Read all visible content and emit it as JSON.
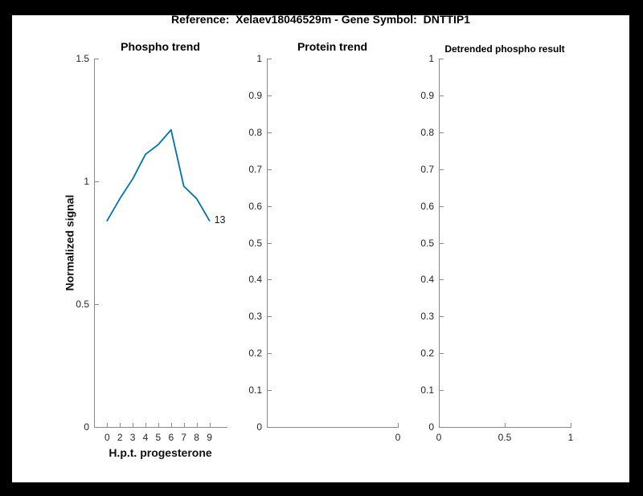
{
  "figure": {
    "title": "Reference:  Xelaev18046529m - Gene Symbol:  DNTTIP1",
    "background_color": "#ffffff",
    "border_color": "#000000"
  },
  "chart_data": [
    {
      "type": "line",
      "title": "Phospho trend",
      "xlabel": "H.p.t. progesterone",
      "ylabel": "Normalized signal",
      "x_tick_labels": [
        "0",
        "2",
        "3",
        "4",
        "5",
        "6",
        "7",
        "8",
        "9"
      ],
      "x": [
        0,
        2,
        3,
        4,
        5,
        6,
        7,
        8,
        9
      ],
      "y_ticks": [
        "0",
        "0.5",
        "1",
        "1.5"
      ],
      "ylim": [
        0,
        1.5
      ],
      "values": [
        0.84,
        0.93,
        1.01,
        1.11,
        1.15,
        1.21,
        0.98,
        0.93,
        0.84
      ],
      "line_color": "#0072bd",
      "end_label": "13",
      "grid": false,
      "legend": null
    },
    {
      "type": "line",
      "title": "Protein trend",
      "xlabel": "",
      "ylabel": "",
      "x_tick_labels": [
        "0"
      ],
      "y_ticks": [
        "0",
        "0.1",
        "0.2",
        "0.3",
        "0.4",
        "0.5",
        "0.6",
        "0.7",
        "0.8",
        "0.9",
        "1"
      ],
      "ylim": [
        0,
        1
      ],
      "values": [],
      "grid": false,
      "legend": null
    },
    {
      "type": "line",
      "title": "Detrended phospho result",
      "xlabel": "",
      "ylabel": "",
      "x_tick_labels": [
        "0",
        "0.5",
        "1"
      ],
      "y_ticks": [
        "0",
        "0.1",
        "0.2",
        "0.3",
        "0.4",
        "0.5",
        "0.6",
        "0.7",
        "0.8",
        "0.9",
        "1"
      ],
      "ylim": [
        0,
        1
      ],
      "values": [],
      "grid": false,
      "legend": null
    }
  ]
}
